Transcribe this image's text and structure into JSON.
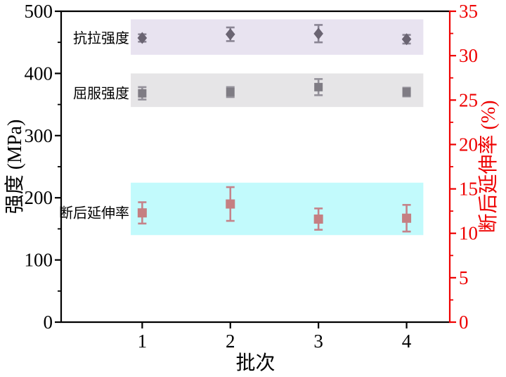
{
  "chart_data": {
    "type": "scatter",
    "title": "",
    "x_axis": {
      "label": "批次",
      "range": [
        0.08,
        4.49
      ],
      "ticks": [
        1,
        2,
        3,
        4
      ]
    },
    "left_axis": {
      "label": "强度 (MPa)",
      "range": [
        0,
        500
      ],
      "major_ticks": [
        0,
        100,
        200,
        300,
        400,
        500
      ],
      "minor_ticks": [
        50,
        150,
        250,
        350,
        450
      ],
      "color": "#000000"
    },
    "right_axis": {
      "label": "断后延伸率 (%)",
      "range": [
        0,
        35
      ],
      "major_ticks": [
        0,
        5,
        10,
        15,
        20,
        25,
        30,
        35
      ],
      "minor_ticks": [
        2.5,
        7.5,
        12.5,
        17.5,
        22.5,
        27.5,
        32.5
      ],
      "color": "#ee0000"
    },
    "band_x_range": [
      0.87,
      4.19
    ],
    "grid": false,
    "series": [
      {
        "key": "tensile-strength",
        "name": "抗拉强度",
        "axis": "left",
        "marker": "diamond",
        "marker_color": "#6a6472",
        "error_color": "#8a8594",
        "x": [
          1,
          2,
          3,
          4
        ],
        "y": [
          457,
          463,
          464,
          455
        ],
        "y_err": [
          6,
          11,
          14,
          7
        ],
        "band": {
          "from": 430,
          "to": 487,
          "color": "#e8e3f0"
        }
      },
      {
        "key": "yield-strength",
        "name": "屈服强度",
        "axis": "left",
        "marker": "square",
        "marker_color": "#7f7c84",
        "error_color": "#94919a",
        "x": [
          1,
          2,
          3,
          4
        ],
        "y": [
          368,
          370,
          378,
          370
        ],
        "y_err": [
          10,
          8,
          13,
          7
        ],
        "band": {
          "from": 346,
          "to": 400,
          "color": "#e6e5e7"
        }
      },
      {
        "key": "elongation",
        "name": "断后延伸率",
        "axis": "right",
        "marker": "square",
        "marker_color": "#c57f82",
        "error_color": "#c5838a",
        "x": [
          1,
          2,
          3,
          4
        ],
        "y": [
          12.3,
          13.3,
          11.6,
          11.7
        ],
        "y_err": [
          1.2,
          1.9,
          1.2,
          1.5
        ],
        "band": {
          "from": 9.8,
          "to": 15.7,
          "color": "#c2fafc"
        }
      }
    ]
  }
}
